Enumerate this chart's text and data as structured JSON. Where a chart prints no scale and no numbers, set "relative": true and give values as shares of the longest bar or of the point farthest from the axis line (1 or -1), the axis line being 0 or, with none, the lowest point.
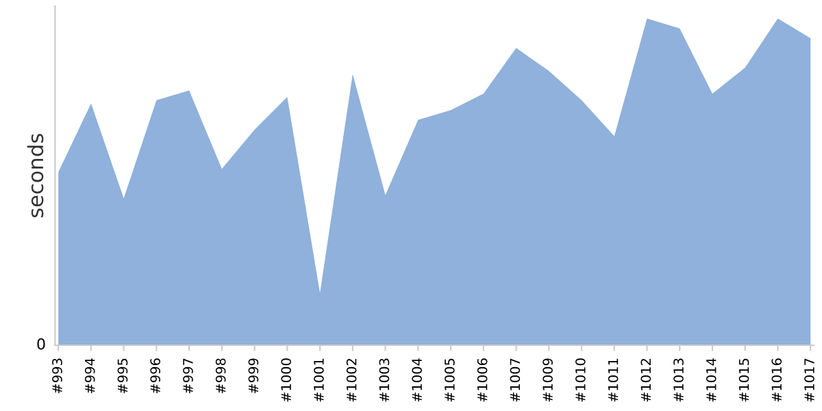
{
  "chart_data": {
    "type": "area",
    "ylabel": "seconds",
    "relative": true,
    "annotations": [
      "0"
    ],
    "color": "#8fb1db",
    "grid": false,
    "categories": [
      "#993",
      "#994",
      "#995",
      "#996",
      "#997",
      "#998",
      "#999",
      "#1000",
      "#1001",
      "#1002",
      "#1003",
      "#1004",
      "#1005",
      "#1006",
      "#1007",
      "#1009",
      "#1010",
      "#1011",
      "#1012",
      "#1013",
      "#1014",
      "#1015",
      "#1016",
      "#1017"
    ],
    "values": [
      0.53,
      0.74,
      0.45,
      0.75,
      0.78,
      0.54,
      0.66,
      0.76,
      0.16,
      0.83,
      0.46,
      0.69,
      0.72,
      0.77,
      0.91,
      0.84,
      0.75,
      0.64,
      1,
      0.97,
      0.77,
      0.85,
      1,
      0.94
    ]
  }
}
